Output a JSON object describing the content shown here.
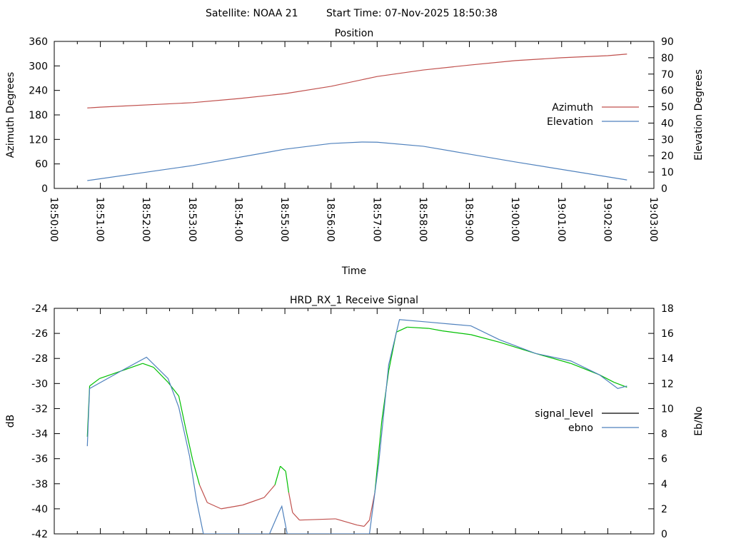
{
  "header": {
    "satellite": "Satellite: NOAA 21",
    "start_time": "Start Time: 07-Nov-2025 18:50:38"
  },
  "chart_data": [
    {
      "type": "line",
      "title": "Position",
      "xlabel": "Time",
      "ylabel": "Azimuth Degrees",
      "y2label": "Elevation Degrees",
      "x_unit": "seconds after 18:50:00",
      "xlim": [
        0,
        780
      ],
      "ylim": [
        0,
        360
      ],
      "y2lim": [
        0,
        90
      ],
      "xticks": [
        "18:50:00",
        "18:51:00",
        "18:52:00",
        "18:53:00",
        "18:54:00",
        "18:55:00",
        "18:56:00",
        "18:57:00",
        "18:58:00",
        "18:59:00",
        "19:00:00",
        "19:01:00",
        "19:02:00",
        "19:03:00"
      ],
      "yticks": [
        "0",
        "60",
        "120",
        "180",
        "240",
        "300",
        "360"
      ],
      "y2ticks": [
        "0",
        "10",
        "20",
        "30",
        "40",
        "50",
        "60",
        "70",
        "80",
        "90"
      ],
      "legend_position": "right",
      "series": [
        {
          "name": "Azimuth",
          "axis": "y",
          "color": "#c0504d",
          "x": [
            43,
            60,
            180,
            240,
            300,
            360,
            420,
            480,
            540,
            600,
            660,
            720,
            745
          ],
          "y": [
            197,
            199,
            210,
            220,
            232,
            250,
            274,
            290,
            302,
            313,
            320,
            325,
            329
          ]
        },
        {
          "name": "Elevation",
          "axis": "y2",
          "color": "#4f81bd",
          "x": [
            43,
            180,
            300,
            360,
            400,
            420,
            480,
            540,
            600,
            745
          ],
          "y": [
            4.8,
            14,
            24,
            27.5,
            28.4,
            28.3,
            25.8,
            21,
            16.2,
            5.2
          ]
        }
      ]
    },
    {
      "type": "line",
      "title": "HRD_RX_1 Receive Signal",
      "ylabel": "dB",
      "y2label": "Eb/No",
      "x_unit": "seconds after 18:50:00",
      "xlim": [
        0,
        780
      ],
      "ylim": [
        -42,
        -24
      ],
      "y2lim": [
        0,
        18
      ],
      "yticks": [
        "-42",
        "-40",
        "-38",
        "-36",
        "-34",
        "-32",
        "-30",
        "-28",
        "-26",
        "-24"
      ],
      "y2ticks": [
        "0",
        "2",
        "4",
        "6",
        "8",
        "10",
        "12",
        "14",
        "16",
        "18"
      ],
      "legend_position": "right",
      "series": [
        {
          "name": "signal_level",
          "axis": "y",
          "color": "#000000",
          "above_color": "#00c000",
          "below_color": "#c0504d",
          "color_threshold": -38.5,
          "x": [
            43,
            46,
            59,
            87,
            115,
            129,
            148,
            162,
            171,
            180,
            189,
            199,
            217,
            245,
            273,
            287,
            294,
            301,
            305,
            310,
            319,
            366,
            394,
            403,
            410,
            417,
            426,
            435,
            445,
            459,
            487,
            505,
            542,
            579,
            626,
            672,
            709,
            728,
            745
          ],
          "y": [
            -34.25,
            -30.2,
            -29.6,
            -29.0,
            -28.4,
            -28.7,
            -29.9,
            -31,
            -33.6,
            -36.1,
            -38.1,
            -39.5,
            -40.0,
            -39.7,
            -39.1,
            -38.1,
            -36.6,
            -37,
            -38.7,
            -40.3,
            -40.9,
            -40.8,
            -41.3,
            -41.4,
            -40.9,
            -38.7,
            -33,
            -29,
            -25.9,
            -25.5,
            -25.6,
            -25.8,
            -26.1,
            -26.7,
            -27.6,
            -28.4,
            -29.3,
            -29.9,
            -30.3
          ]
        },
        {
          "name": "ebno",
          "axis": "y2",
          "color": "#4f81bd",
          "x": [
            43,
            46,
            87,
            120,
            148,
            162,
            176,
            185,
            194,
            280,
            292,
            296,
            303,
            410,
            422,
            435,
            449,
            487,
            542,
            579,
            626,
            672,
            709,
            733,
            745
          ],
          "y": [
            7.0,
            11.6,
            13,
            14.1,
            12.4,
            10.1,
            6.2,
            2.7,
            0,
            0,
            1.7,
            2.2,
            0,
            0,
            5.6,
            13.5,
            17.1,
            16.9,
            16.6,
            15.5,
            14.4,
            13.8,
            12.7,
            11.6,
            11.8
          ]
        }
      ]
    }
  ]
}
